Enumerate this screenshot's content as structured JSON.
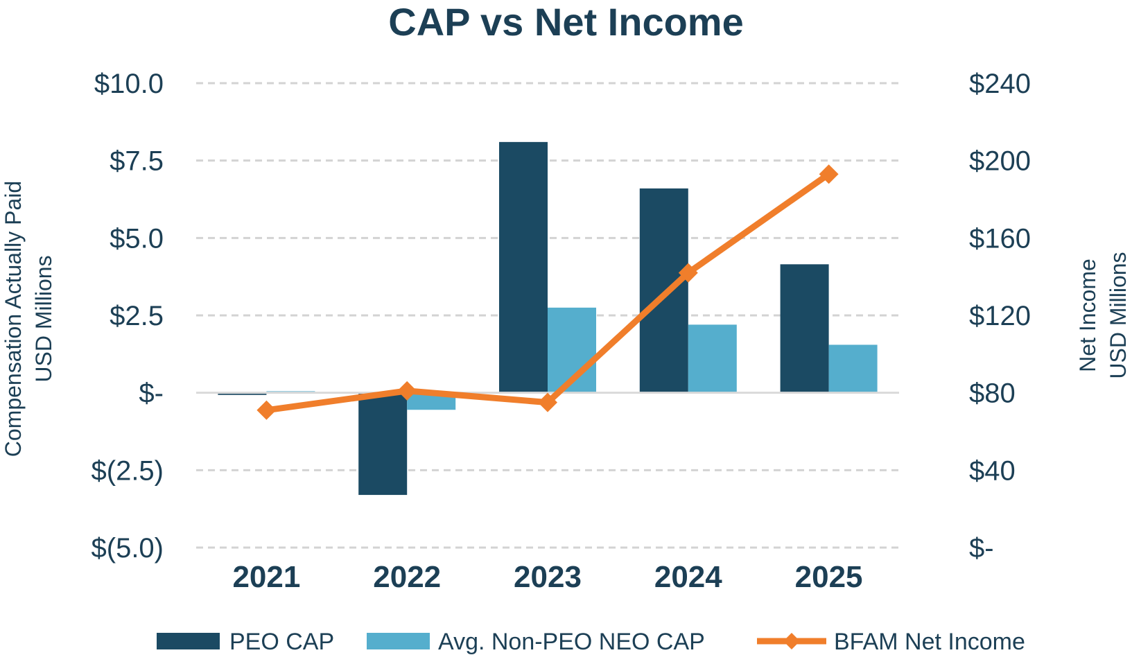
{
  "chart_data": {
    "type": "bar",
    "title": "CAP vs Net Income",
    "categories": [
      "2021",
      "2022",
      "2023",
      "2024",
      "2025"
    ],
    "series": [
      {
        "name": "PEO CAP",
        "type": "bar",
        "axis": "left",
        "color": "#1b4a63",
        "values": [
          -0.07,
          -3.3,
          8.1,
          6.6,
          4.15
        ]
      },
      {
        "name": "Avg. Non-PEO NEO CAP",
        "type": "bar",
        "axis": "left",
        "color": "#55aecd",
        "values": [
          0.05,
          -0.55,
          2.75,
          2.2,
          1.55
        ]
      },
      {
        "name": "BFAM Net Income",
        "type": "line",
        "axis": "right",
        "color": "#f07e2b",
        "marker": "diamond",
        "values": [
          71,
          81,
          75,
          142,
          193
        ]
      }
    ],
    "y_left": {
      "label_lines": [
        "Compensation Actually Paid",
        "USD Millions"
      ],
      "ylim": [
        -5,
        10
      ],
      "ticks": [
        10,
        7.5,
        5,
        2.5,
        0,
        -2.5,
        -5
      ],
      "tick_labels": [
        "$10.0",
        "$7.5",
        "$5.0",
        "$2.5",
        "$-",
        "$(2.5)",
        "$(5.0)"
      ]
    },
    "y_right": {
      "label_lines": [
        "Net Income",
        "USD Millions"
      ],
      "ylim": [
        0,
        240
      ],
      "ticks": [
        240,
        200,
        160,
        120,
        80,
        40,
        0
      ],
      "tick_labels": [
        "$240",
        "$200",
        "$160",
        "$120",
        "$80",
        "$40",
        "$-"
      ]
    },
    "grid": true,
    "grid_style": "dashed",
    "legend_position": "bottom"
  }
}
